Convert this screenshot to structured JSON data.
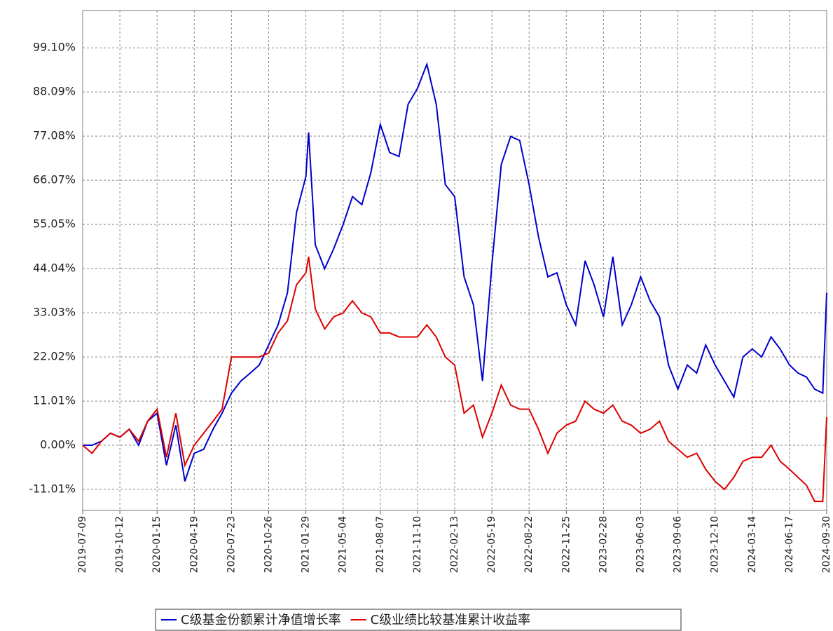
{
  "chart_data": {
    "type": "line",
    "x": [
      "2019-07-09",
      "2019-08-02",
      "2019-08-26",
      "2019-09-18",
      "2019-10-12",
      "2019-11-05",
      "2019-11-29",
      "2019-12-22",
      "2020-01-15",
      "2020-02-08",
      "2020-03-03",
      "2020-03-26",
      "2020-04-19",
      "2020-05-13",
      "2020-06-06",
      "2020-06-29",
      "2020-07-23",
      "2020-08-16",
      "2020-09-09",
      "2020-10-02",
      "2020-10-26",
      "2020-11-19",
      "2020-12-13",
      "2021-01-05",
      "2021-01-29",
      "2021-02-05",
      "2021-02-22",
      "2021-03-18",
      "2021-04-10",
      "2021-05-04",
      "2021-05-28",
      "2021-06-21",
      "2021-07-14",
      "2021-08-07",
      "2021-08-31",
      "2021-09-24",
      "2021-10-17",
      "2021-11-10",
      "2021-12-04",
      "2021-12-28",
      "2022-01-20",
      "2022-02-13",
      "2022-03-09",
      "2022-04-02",
      "2022-04-25",
      "2022-05-19",
      "2022-06-12",
      "2022-07-06",
      "2022-07-29",
      "2022-08-22",
      "2022-09-15",
      "2022-10-09",
      "2022-11-01",
      "2022-11-25",
      "2022-12-19",
      "2023-01-12",
      "2023-02-04",
      "2023-02-28",
      "2023-03-24",
      "2023-04-17",
      "2023-05-10",
      "2023-06-03",
      "2023-06-27",
      "2023-07-21",
      "2023-08-13",
      "2023-09-06",
      "2023-09-30",
      "2023-10-24",
      "2023-11-16",
      "2023-12-10",
      "2024-01-03",
      "2024-01-27",
      "2024-02-19",
      "2024-03-14",
      "2024-04-07",
      "2024-05-01",
      "2024-05-24",
      "2024-06-17",
      "2024-07-11",
      "2024-08-04",
      "2024-08-27",
      "2024-09-19",
      "2024-09-30"
    ],
    "series": [
      {
        "name": "C级基金份额累计净值增长率",
        "color": "#0000cc",
        "values": [
          0,
          0,
          1,
          3,
          2,
          4,
          0,
          6,
          8,
          -5,
          5,
          -9,
          -2,
          -1,
          4,
          8,
          13,
          16,
          18,
          20,
          25,
          30,
          38,
          58,
          67,
          78,
          50,
          44,
          49,
          55,
          62,
          60,
          68,
          80,
          73,
          72,
          85,
          89,
          95,
          85,
          65,
          62,
          42,
          35,
          16,
          45,
          70,
          77,
          76,
          65,
          52,
          42,
          43,
          35,
          30,
          46,
          40,
          32,
          47,
          30,
          35,
          42,
          36,
          32,
          20,
          14,
          20,
          18,
          25,
          20,
          16,
          12,
          22,
          24,
          22,
          27,
          24,
          20,
          18,
          17,
          14,
          13,
          38
        ]
      },
      {
        "name": "C级业绩比较基准累计收益率",
        "color": "#dd0000",
        "values": [
          0,
          -2,
          1,
          3,
          2,
          4,
          1,
          6,
          9,
          -3,
          8,
          -5,
          0,
          3,
          6,
          9,
          22,
          22,
          22,
          22,
          23,
          28,
          31,
          40,
          43,
          47,
          34,
          29,
          32,
          33,
          36,
          33,
          32,
          28,
          28,
          27,
          27,
          27,
          30,
          27,
          22,
          20,
          8,
          10,
          2,
          8,
          15,
          10,
          9,
          9,
          4,
          -2,
          3,
          5,
          6,
          11,
          9,
          8,
          10,
          6,
          5,
          3,
          4,
          6,
          1,
          -1,
          -3,
          -2,
          -6,
          -9,
          -11,
          -8,
          -4,
          -3,
          -3,
          0,
          -4,
          -6,
          -8,
          -10,
          -14,
          -14,
          7
        ]
      }
    ],
    "xlim": [
      "2019-07-09",
      "2024-09-30"
    ],
    "xticks": [
      "2019-07-09",
      "2019-10-12",
      "2020-01-15",
      "2020-04-19",
      "2020-07-23",
      "2020-10-26",
      "2021-01-29",
      "2021-05-04",
      "2021-08-07",
      "2021-11-10",
      "2022-02-13",
      "2022-05-19",
      "2022-08-22",
      "2022-11-25",
      "2023-02-28",
      "2023-06-03",
      "2023-09-06",
      "2023-12-10",
      "2024-03-14",
      "2024-06-17",
      "2024-09-30"
    ],
    "ylim": [
      -16.25,
      108.4
    ],
    "yticks": [
      {
        "value": -11.01,
        "label": "-11.01%"
      },
      {
        "value": 0,
        "label": "0.00%"
      },
      {
        "value": 11.01,
        "label": "11.01%"
      },
      {
        "value": 22.02,
        "label": "22.02%"
      },
      {
        "value": 33.03,
        "label": "33.03%"
      },
      {
        "value": 44.04,
        "label": "44.04%"
      },
      {
        "value": 55.05,
        "label": "55.05%"
      },
      {
        "value": 66.07,
        "label": "66.07%"
      },
      {
        "value": 77.08,
        "label": "77.08%"
      },
      {
        "value": 88.09,
        "label": "88.09%"
      },
      {
        "value": 99.1,
        "label": "99.10%"
      }
    ],
    "grid": true
  }
}
